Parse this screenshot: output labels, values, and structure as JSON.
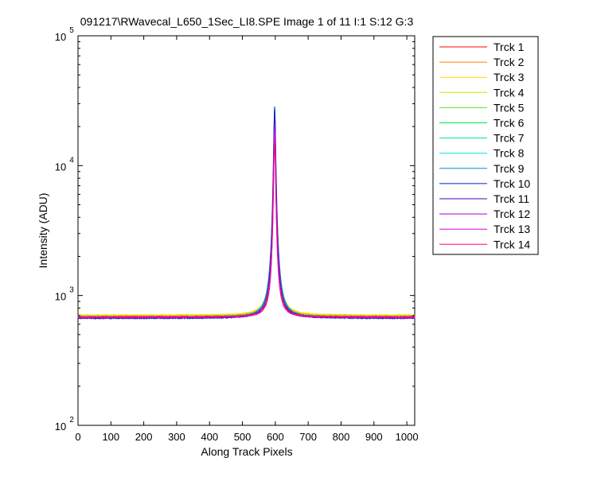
{
  "chart_data": {
    "type": "line",
    "title": "091217\\RWavecal_L650_1Sec_LI8.SPE  Image 1 of 11  I:1  S:12  G:3",
    "xlabel": "Along Track Pixels",
    "ylabel": "Intensity (ADU)",
    "xlim": [
      0,
      1024
    ],
    "ylim": [
      100,
      100000
    ],
    "yscale": "log",
    "grid": false,
    "legend_position": "outside-right",
    "x_ticks": [
      "0",
      "100",
      "200",
      "300",
      "400",
      "500",
      "600",
      "700",
      "800",
      "900",
      "1000"
    ],
    "y_ticks": [
      {
        "value": 100,
        "base": "10",
        "exp": "2"
      },
      {
        "value": 1000,
        "base": "10",
        "exp": "3"
      },
      {
        "value": 10000,
        "base": "10",
        "exp": "4"
      },
      {
        "value": 100000,
        "base": "10",
        "exp": "5"
      }
    ],
    "peak_center": 598,
    "series": [
      {
        "name": "Trck 1",
        "color": "#ff0000",
        "baseline": 690,
        "peak": 22000
      },
      {
        "name": "Trck 2",
        "color": "#ff8000",
        "baseline": 700,
        "peak": 24000
      },
      {
        "name": "Trck 3",
        "color": "#ffd700",
        "baseline": 705,
        "peak": 25000
      },
      {
        "name": "Trck 4",
        "color": "#c8e600",
        "baseline": 695,
        "peak": 24500
      },
      {
        "name": "Trck 5",
        "color": "#66e01a",
        "baseline": 685,
        "peak": 25500
      },
      {
        "name": "Trck 6",
        "color": "#00e050",
        "baseline": 680,
        "peak": 26000
      },
      {
        "name": "Trck 7",
        "color": "#00e0a0",
        "baseline": 675,
        "peak": 26500
      },
      {
        "name": "Trck 8",
        "color": "#00e0d8",
        "baseline": 678,
        "peak": 27000
      },
      {
        "name": "Trck 9",
        "color": "#0090c0",
        "baseline": 670,
        "peak": 27500
      },
      {
        "name": "Trck 10",
        "color": "#0020c0",
        "baseline": 668,
        "peak": 28500
      },
      {
        "name": "Trck 11",
        "color": "#4000c0",
        "baseline": 672,
        "peak": 24000
      },
      {
        "name": "Trck 12",
        "color": "#a000d8",
        "baseline": 676,
        "peak": 21000
      },
      {
        "name": "Trck 13",
        "color": "#e000e0",
        "baseline": 680,
        "peak": 18000
      },
      {
        "name": "Trck 14",
        "color": "#ff0080",
        "baseline": 684,
        "peak": 16000
      }
    ]
  }
}
